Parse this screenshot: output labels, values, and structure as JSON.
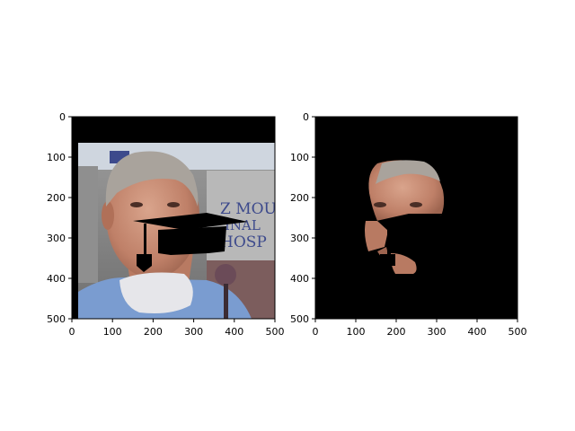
{
  "chart_data": [
    {
      "type": "image",
      "title": "",
      "xlabel": "",
      "ylabel": "",
      "xlim": [
        0,
        500
      ],
      "ylim": [
        500,
        0
      ],
      "xticks": [
        "0",
        "100",
        "200",
        "300",
        "400",
        "500"
      ],
      "yticks": [
        "0",
        "100",
        "200",
        "300",
        "400",
        "500"
      ],
      "content": "photo of a man's face wearing a black graduation cap, with a protective face mask below the chin",
      "visible_text": [
        "Z MOUN",
        "INAL",
        "HOSP"
      ]
    },
    {
      "type": "image",
      "title": "",
      "xlabel": "",
      "ylabel": "",
      "xlim": [
        0,
        500
      ],
      "ylim": [
        500,
        0
      ],
      "xticks": [
        "0",
        "100",
        "200",
        "300",
        "400",
        "500"
      ],
      "yticks": [
        "0",
        "100",
        "200",
        "300",
        "400",
        "500"
      ],
      "content": "segmentation mask: only the face skin region visible on black background"
    }
  ],
  "colors": {
    "background": "#ffffff",
    "image_black": "#000000",
    "wall_gray": "#8c8c8c",
    "sky": "#cfd6df",
    "skin": "#c48a72",
    "hair": "#a9a39c",
    "shirt": "#7a9cd0",
    "mask": "#e6e6ea",
    "mic": "#6b4b58",
    "sign_blue": "#3d4a8c"
  }
}
